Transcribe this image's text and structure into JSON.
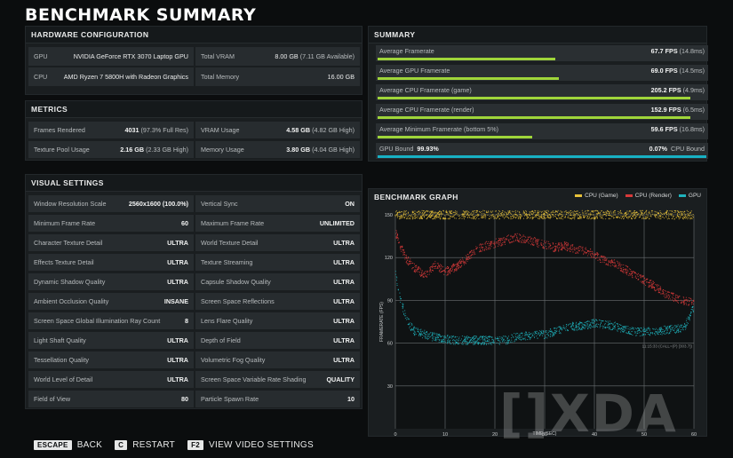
{
  "page_title": "BENCHMARK SUMMARY",
  "hardware": {
    "title": "HARDWARE CONFIGURATION",
    "rows": [
      {
        "label": "GPU",
        "value": "NVIDIA GeForce RTX 3070 Laptop GPU"
      },
      {
        "label": "Total VRAM",
        "value": "8.00 GB",
        "sub": "(7.11 GB Available)"
      },
      {
        "label": "CPU",
        "value": "AMD Ryzen 7 5800H with Radeon Graphics"
      },
      {
        "label": "Total Memory",
        "value": "16.00 GB"
      }
    ]
  },
  "metrics": {
    "title": "METRICS",
    "rows": [
      {
        "label": "Frames Rendered",
        "value": "4031",
        "sub": "(97.3% Full Res)"
      },
      {
        "label": "VRAM Usage",
        "value": "4.58 GB",
        "sub": "(4.82 GB High)"
      },
      {
        "label": "Texture Pool Usage",
        "value": "2.16 GB",
        "sub": "(2.33 GB High)"
      },
      {
        "label": "Memory Usage",
        "value": "3.80 GB",
        "sub": "(4.04 GB High)"
      }
    ]
  },
  "visual": {
    "title": "VISUAL SETTINGS",
    "rows": [
      {
        "label": "Window Resolution Scale",
        "value": "2560x1600 (100.0%)"
      },
      {
        "label": "Vertical Sync",
        "value": "ON"
      },
      {
        "label": "Minimum Frame Rate",
        "value": "60"
      },
      {
        "label": "Maximum Frame Rate",
        "value": "UNLIMITED"
      },
      {
        "label": "Character Texture Detail",
        "value": "ULTRA"
      },
      {
        "label": "World Texture Detail",
        "value": "ULTRA"
      },
      {
        "label": "Effects Texture Detail",
        "value": "ULTRA"
      },
      {
        "label": "Texture Streaming",
        "value": "ULTRA"
      },
      {
        "label": "Dynamic Shadow Quality",
        "value": "ULTRA"
      },
      {
        "label": "Capsule Shadow Quality",
        "value": "ULTRA"
      },
      {
        "label": "Ambient Occlusion Quality",
        "value": "INSANE"
      },
      {
        "label": "Screen Space Reflections",
        "value": "ULTRA"
      },
      {
        "label": "Screen Space Global Illumination Ray Count",
        "value": "8"
      },
      {
        "label": "Lens Flare Quality",
        "value": "ULTRA"
      },
      {
        "label": "Light Shaft Quality",
        "value": "ULTRA"
      },
      {
        "label": "Depth of Field",
        "value": "ULTRA"
      },
      {
        "label": "Tessellation Quality",
        "value": "ULTRA"
      },
      {
        "label": "Volumetric Fog Quality",
        "value": "ULTRA"
      },
      {
        "label": "World Level of Detail",
        "value": "ULTRA"
      },
      {
        "label": "Screen Space Variable Rate Shading",
        "value": "QUALITY"
      },
      {
        "label": "Field of View",
        "value": "80"
      },
      {
        "label": "Particle Spawn Rate",
        "value": "10"
      }
    ]
  },
  "summary": {
    "title": "SUMMARY",
    "rows": [
      {
        "label": "Average Framerate",
        "value": "67.7 FPS",
        "sub": "(14.8ms)",
        "fill": 0.54
      },
      {
        "label": "Average GPU Framerate",
        "value": "69.0 FPS",
        "sub": "(14.5ms)",
        "fill": 0.55
      },
      {
        "label": "Average CPU Framerate (game)",
        "value": "205.2 FPS",
        "sub": "(4.9ms)",
        "fill": 0.95
      },
      {
        "label": "Average CPU Framerate (render)",
        "value": "152.9 FPS",
        "sub": "(6.5ms)",
        "fill": 0.95
      },
      {
        "label": "Average Minimum Framerate (bottom 5%)",
        "value": "59.6 FPS",
        "sub": "(16.8ms)",
        "fill": 0.47
      }
    ],
    "bound": {
      "gpu_label": "GPU Bound",
      "gpu_value": "99.93%",
      "cpu_value": "0.07%",
      "cpu_label": "CPU Bound",
      "gpu_fraction": 0.9993
    }
  },
  "graph": {
    "title": "BENCHMARK GRAPH",
    "legend": [
      {
        "name": "CPU (Game)",
        "color": "#e8c23a"
      },
      {
        "name": "CPU (Render)",
        "color": "#d83a3a"
      },
      {
        "name": "GPU",
        "color": "#1fb3bd"
      }
    ],
    "corner_text": "11:15:33 (CALL=(P) [303.7])"
  },
  "chart_data": {
    "type": "scatter",
    "title": "BENCHMARK GRAPH",
    "xlabel": "TIME (SEC)",
    "ylabel": "FRAMERATE (FPS)",
    "xlim": [
      0,
      60
    ],
    "ylim": [
      0,
      150
    ],
    "x_ticks": [
      0,
      10,
      20,
      30,
      40,
      50,
      60
    ],
    "y_ticks": [
      30,
      60,
      90,
      120,
      150
    ],
    "grid": true,
    "legend_position": "top-right",
    "series": [
      {
        "name": "CPU (Game)",
        "color": "#e8c23a",
        "x": [
          0,
          60
        ],
        "y": [
          150,
          150
        ]
      },
      {
        "name": "CPU (Render)",
        "color": "#d83a3a",
        "x": [
          0,
          2,
          4,
          6,
          8,
          10,
          12,
          14,
          16,
          18,
          20,
          22,
          24,
          26,
          28,
          30,
          32,
          34,
          36,
          38,
          40,
          42,
          44,
          46,
          48,
          50,
          52,
          54,
          56,
          58,
          60
        ],
        "y": [
          138,
          120,
          112,
          108,
          115,
          110,
          113,
          118,
          125,
          128,
          130,
          132,
          134,
          133,
          131,
          129,
          127,
          128,
          126,
          125,
          122,
          118,
          116,
          112,
          108,
          104,
          100,
          95,
          92,
          90,
          88
        ]
      },
      {
        "name": "GPU",
        "color": "#1fb3bd",
        "x": [
          0,
          1,
          2,
          3,
          4,
          6,
          8,
          10,
          12,
          14,
          16,
          18,
          20,
          22,
          24,
          26,
          28,
          30,
          32,
          34,
          36,
          38,
          40,
          42,
          44,
          46,
          48,
          50,
          52,
          54,
          56,
          58,
          59,
          60
        ],
        "y": [
          110,
          90,
          80,
          72,
          68,
          66,
          64,
          63,
          62,
          62,
          62,
          62,
          62,
          62,
          64,
          65,
          66,
          66,
          68,
          70,
          72,
          72,
          74,
          73,
          72,
          70,
          68,
          68,
          68,
          69,
          70,
          70,
          78,
          85
        ]
      }
    ]
  },
  "footer": [
    {
      "key": "ESCAPE",
      "label": "BACK"
    },
    {
      "key": "C",
      "label": "RESTART"
    },
    {
      "key": "F2",
      "label": "VIEW VIDEO SETTINGS"
    }
  ],
  "watermark": "[]XDA"
}
